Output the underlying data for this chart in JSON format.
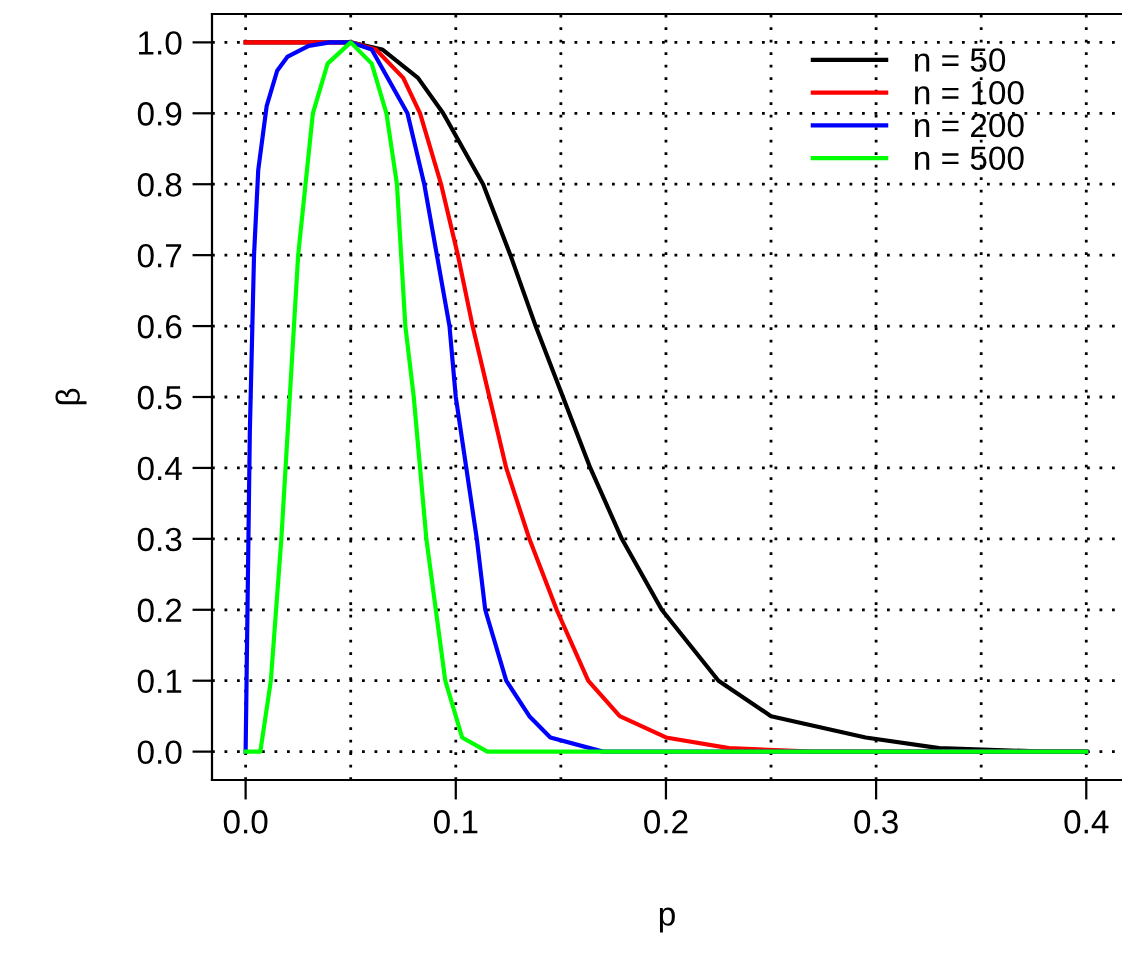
{
  "chart_data": {
    "type": "line",
    "xlabel": "p",
    "ylabel": "β",
    "xlim": [
      -0.016,
      0.417
    ],
    "ylim": [
      -0.04,
      1.04
    ],
    "xticks": [
      {
        "value": 0,
        "label": "0.0"
      },
      {
        "value": 0.05,
        "label": null
      },
      0.1,
      {
        "value": 0.15,
        "label": null
      },
      0.2,
      {
        "value": 0.25,
        "label": null
      },
      0.3,
      {
        "value": 0.35,
        "label": null
      },
      0.4
    ],
    "yticks": [
      {
        "value": 0,
        "label": "0.0"
      },
      0.1,
      0.2,
      0.3,
      0.4,
      0.5,
      0.6,
      0.7,
      0.8,
      0.9,
      {
        "value": 1,
        "label": "1.0"
      }
    ],
    "grid": true,
    "legend": "top right",
    "line_style": "solid",
    "marker": "none",
    "series": [
      {
        "name": "n = 50",
        "color": "#000000",
        "x": [
          0,
          0.05,
          0.065,
          0.082,
          0.094,
          0.113,
          0.126,
          0.138,
          0.151,
          0.164,
          0.179,
          0.198,
          0.225,
          0.25,
          0.295,
          0.33,
          0.38,
          0.4
        ],
        "values": [
          1.0,
          1.0,
          0.99,
          0.95,
          0.9,
          0.8,
          0.7,
          0.6,
          0.5,
          0.4,
          0.3,
          0.2,
          0.1,
          0.05,
          0.02,
          0.005,
          0.0,
          0.0
        ]
      },
      {
        "name": "n = 100",
        "color": "#ff0000",
        "x": [
          0,
          0.05,
          0.062,
          0.075,
          0.083,
          0.093,
          0.101,
          0.108,
          0.116,
          0.124,
          0.135,
          0.148,
          0.163,
          0.178,
          0.2,
          0.23,
          0.27,
          0.4
        ],
        "values": [
          1.0,
          1.0,
          0.99,
          0.95,
          0.9,
          0.8,
          0.7,
          0.6,
          0.5,
          0.4,
          0.3,
          0.2,
          0.1,
          0.05,
          0.02,
          0.005,
          0.0,
          0.0
        ]
      },
      {
        "name": "n = 200",
        "color": "#0000ff",
        "x": [
          0,
          0.002,
          0.004,
          0.006,
          0.01,
          0.015,
          0.02,
          0.03,
          0.04,
          0.05,
          0.06,
          0.077,
          0.085,
          0.091,
          0.097,
          0.1,
          0.105,
          0.11,
          0.114,
          0.124,
          0.135,
          0.145,
          0.17,
          0.4
        ],
        "values": [
          0.0,
          0.45,
          0.7,
          0.82,
          0.91,
          0.96,
          0.98,
          0.995,
          1.0,
          1.0,
          0.99,
          0.9,
          0.8,
          0.7,
          0.6,
          0.5,
          0.4,
          0.3,
          0.2,
          0.1,
          0.05,
          0.02,
          0.0,
          0.0
        ]
      },
      {
        "name": "n = 500",
        "color": "#00ff00",
        "x": [
          0,
          0.007,
          0.012,
          0.017,
          0.021,
          0.025,
          0.032,
          0.039,
          0.05,
          0.06,
          0.067,
          0.072,
          0.076,
          0.08,
          0.086,
          0.095,
          0.103,
          0.115,
          0.4
        ],
        "values": [
          0.0,
          0.0,
          0.1,
          0.3,
          0.5,
          0.7,
          0.9,
          0.97,
          1.0,
          0.97,
          0.9,
          0.8,
          0.6,
          0.5,
          0.3,
          0.1,
          0.02,
          0.0,
          0.0
        ]
      }
    ]
  }
}
